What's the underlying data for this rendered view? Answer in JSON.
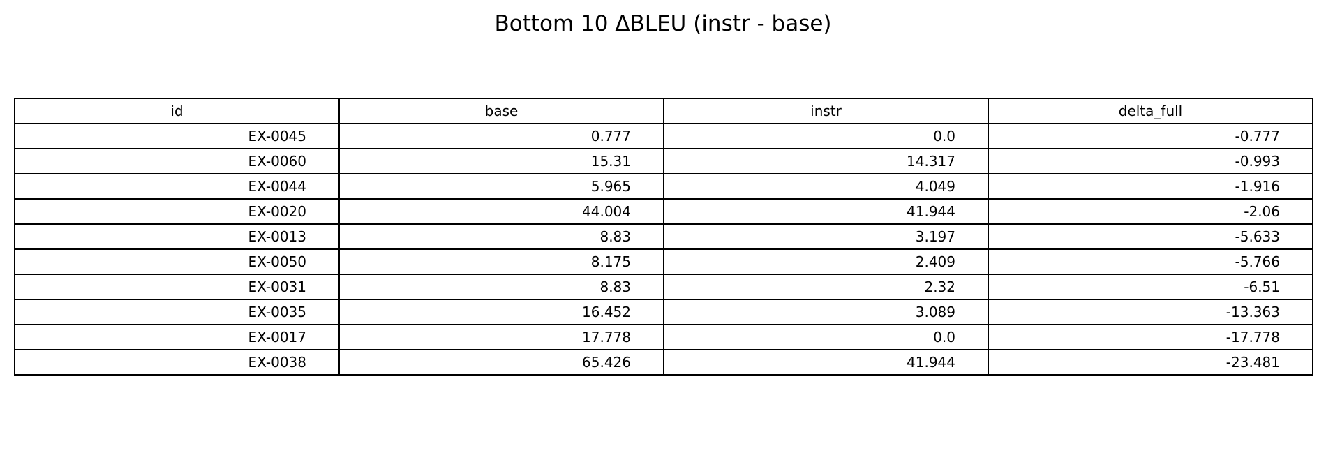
{
  "chart_data": {
    "type": "table",
    "title": "Bottom 10 ΔBLEU (instr - base)",
    "columns": [
      "id",
      "base",
      "instr",
      "delta_full"
    ],
    "rows": [
      [
        "EX-0045",
        "0.777",
        "0.0",
        "-0.777"
      ],
      [
        "EX-0060",
        "15.31",
        "14.317",
        "-0.993"
      ],
      [
        "EX-0044",
        "5.965",
        "4.049",
        "-1.916"
      ],
      [
        "EX-0020",
        "44.004",
        "41.944",
        "-2.06"
      ],
      [
        "EX-0013",
        "8.83",
        "3.197",
        "-5.633"
      ],
      [
        "EX-0050",
        "8.175",
        "2.409",
        "-5.766"
      ],
      [
        "EX-0031",
        "8.83",
        "2.32",
        "-6.51"
      ],
      [
        "EX-0035",
        "16.452",
        "3.089",
        "-13.363"
      ],
      [
        "EX-0017",
        "17.778",
        "0.0",
        "-17.778"
      ],
      [
        "EX-0038",
        "65.426",
        "41.944",
        "-23.481"
      ]
    ]
  }
}
